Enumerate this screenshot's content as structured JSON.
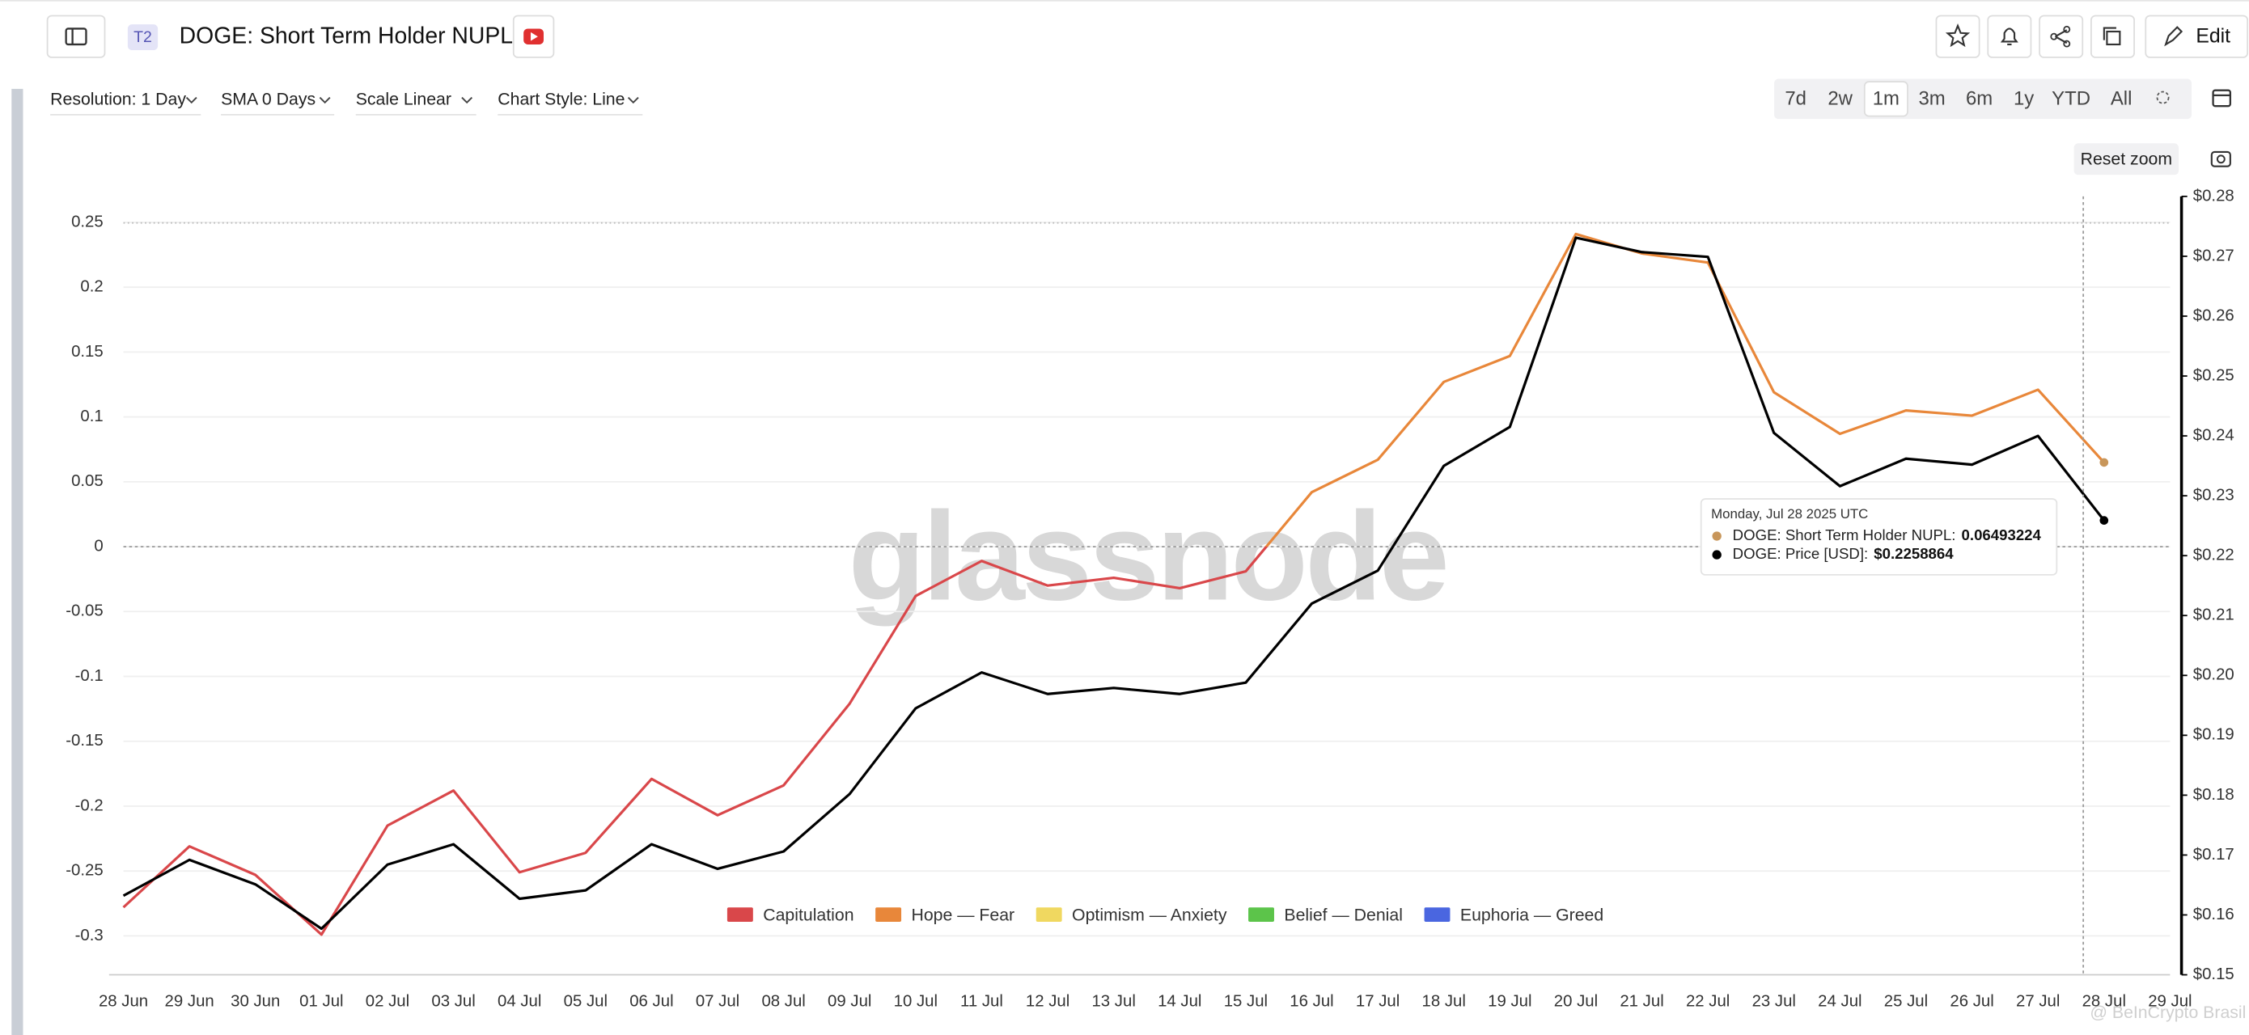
{
  "header": {
    "badge": "T2",
    "title": "DOGE: Short Term Holder NUPL",
    "edit": "Edit"
  },
  "controls": {
    "resolution": "Resolution: 1 Day",
    "sma": "SMA 0 Days",
    "scale": "Scale Linear",
    "style": "Chart Style: Line",
    "ranges": [
      "7d",
      "2w",
      "1m",
      "3m",
      "6m",
      "1y",
      "YTD",
      "All"
    ],
    "reset": "Reset zoom"
  },
  "chart_data": {
    "type": "line",
    "watermark": "glassnode",
    "credit": "@ BeInCrypto Brasil",
    "x": [
      "28 Jun",
      "29 Jun",
      "30 Jun",
      "01 Jul",
      "02 Jul",
      "03 Jul",
      "04 Jul",
      "05 Jul",
      "06 Jul",
      "07 Jul",
      "08 Jul",
      "09 Jul",
      "10 Jul",
      "11 Jul",
      "12 Jul",
      "13 Jul",
      "14 Jul",
      "15 Jul",
      "16 Jul",
      "17 Jul",
      "18 Jul",
      "19 Jul",
      "20 Jul",
      "21 Jul",
      "22 Jul",
      "23 Jul",
      "24 Jul",
      "25 Jul",
      "26 Jul",
      "27 Jul",
      "28 Jul",
      "29 Jul"
    ],
    "series": [
      {
        "values": [
          -0.278,
          -0.231,
          -0.253,
          -0.299,
          -0.215,
          -0.188,
          -0.251,
          -0.236,
          -0.179,
          -0.207,
          -0.184,
          -0.121,
          -0.038,
          -0.011,
          -0.03,
          -0.024,
          -0.032,
          -0.019,
          0.042,
          0.067,
          0.127,
          0.147,
          0.241,
          0.226,
          0.219,
          0.119,
          0.087,
          0.105,
          0.101,
          0.121,
          0.06493224,
          null
        ],
        "end_color": "#c8965a"
      },
      {
        "axis": "y2",
        "color": "#000000",
        "values": [
          0.1632,
          0.1692,
          0.1651,
          0.1577,
          0.1684,
          0.1718,
          0.1627,
          0.1641,
          0.1718,
          0.1677,
          0.1706,
          0.1802,
          0.1945,
          0.2005,
          0.1969,
          0.1979,
          0.1969,
          0.1988,
          0.212,
          0.2175,
          0.235,
          0.2415,
          0.2731,
          0.2707,
          0.2699,
          0.2405,
          0.2316,
          0.2362,
          0.2352,
          0.24,
          0.2258864,
          null
        ]
      }
    ],
    "zones": [
      {
        "name": "Capitulation",
        "color": "#d9474a"
      },
      {
        "name": "Hope — Fear",
        "color": "#e8873a"
      },
      {
        "name": "Optimism — Anxiety",
        "color": "#f0d860"
      },
      {
        "name": "Belief — Denial",
        "color": "#5cc44a"
      },
      {
        "name": "Euphoria — Greed",
        "color": "#4a66e0"
      }
    ],
    "ylim": [
      -0.33,
      0.27
    ],
    "yticks": [
      -0.3,
      -0.25,
      -0.2,
      -0.15,
      -0.1,
      -0.05,
      0,
      0.05,
      0.1,
      0.15,
      0.2,
      0.25
    ],
    "y2lim": [
      0.15,
      0.28
    ],
    "y2ticks": [
      {
        "value": 0.15,
        "label": "$0.15"
      },
      {
        "value": 0.16,
        "label": "$0.16"
      },
      {
        "value": 0.17,
        "label": "$0.17"
      },
      {
        "value": 0.18,
        "label": "$0.18"
      },
      {
        "value": 0.19,
        "label": "$0.19"
      },
      {
        "value": 0.2,
        "label": "$0.20"
      },
      {
        "value": 0.21,
        "label": "$0.21"
      },
      {
        "value": 0.22,
        "label": "$0.22"
      },
      {
        "value": 0.23,
        "label": "$0.23"
      },
      {
        "value": 0.24,
        "label": "$0.24"
      },
      {
        "value": 0.25,
        "label": "$0.25"
      },
      {
        "value": 0.26,
        "label": "$0.26"
      },
      {
        "value": 0.27,
        "label": "$0.27"
      },
      {
        "value": 0.28,
        "label": "$0.28"
      }
    ],
    "grid": true,
    "tooltip": {
      "date": "Monday, Jul 28 2025 UTC",
      "rows": [
        "DOGE: Short Term Holder NUPL:",
        "DOGE: Price [USD]:"
      ],
      "values": [
        "0.06493224",
        "$0.2258864"
      ]
    }
  }
}
